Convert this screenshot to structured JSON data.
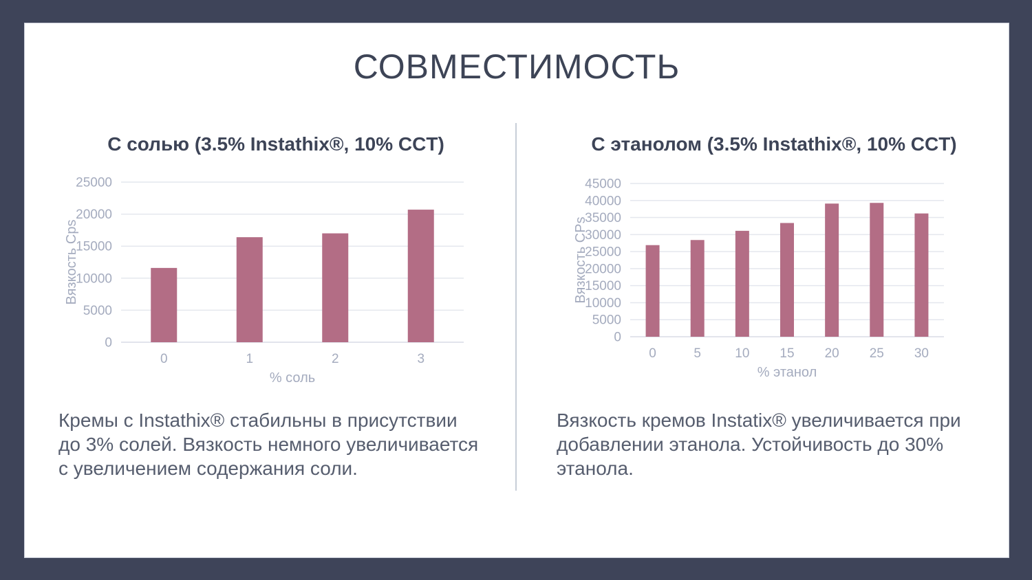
{
  "slide": {
    "title": "СОВМЕСТИМОСТЬ"
  },
  "colors": {
    "frame": "#3e4459",
    "slide_bg": "#ffffff",
    "bar": "#b36d85",
    "grid": "#e4e7ee",
    "baseline": "#d8dce6",
    "axis_text": "#a4abbe",
    "title_text": "#3d4457",
    "body_text": "#565d6e",
    "divider": "#c7ced8"
  },
  "chart_data": [
    {
      "type": "bar",
      "title": "С солью (3.5% Instathix®, 10% CCT)",
      "categories": [
        "0",
        "1",
        "2",
        "3"
      ],
      "values": [
        11600,
        16400,
        17000,
        20700
      ],
      "xlabel": "% соль",
      "ylabel": "Вязкость Cps",
      "ylim": [
        0,
        25000
      ],
      "ytick_step": 5000,
      "grid": true,
      "legend": "none"
    },
    {
      "type": "bar",
      "title": "С этанолом (3.5% Instathix®, 10% CCT)",
      "categories": [
        "0",
        "5",
        "10",
        "15",
        "20",
        "25",
        "30"
      ],
      "values": [
        26900,
        28400,
        31100,
        33400,
        39100,
        39300,
        36200
      ],
      "xlabel": "% этанол",
      "ylabel": "Вязкость CPs",
      "ylim": [
        0,
        45000
      ],
      "ytick_step": 5000,
      "grid": true,
      "legend": "none"
    }
  ],
  "columns": [
    {
      "body": "Кремы с Instathix® стабильны в присутствии до 3% солей. Вязкость немного увеличивается с увеличением содержания соли."
    },
    {
      "body": "Вязкость кремов Instatix® увеличивается при добавлении этанола. Устойчивость до 30% этанола."
    }
  ]
}
